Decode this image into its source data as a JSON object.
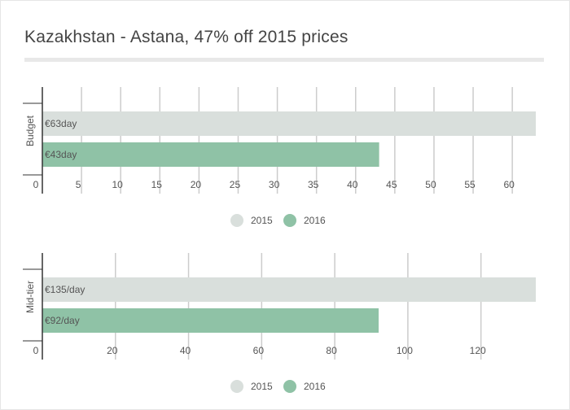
{
  "title": "Kazakhstan - Astana, 47% off 2015 prices",
  "colors": {
    "s2015": "#d9dfdc",
    "s2016": "#8fc2a6",
    "grid": "#cccccc",
    "axis": "#333333",
    "text": "#555555"
  },
  "chart_data": [
    {
      "type": "bar",
      "orientation": "horizontal",
      "category": "Budget",
      "xlim": [
        0,
        63
      ],
      "ticks": [
        0,
        5,
        10,
        15,
        20,
        25,
        30,
        35,
        40,
        45,
        50,
        55,
        60
      ],
      "grid": true,
      "legend_position": "bottom",
      "series": [
        {
          "name": "2015",
          "value": 63,
          "label": "€63day"
        },
        {
          "name": "2016",
          "value": 43,
          "label": "€43day"
        }
      ]
    },
    {
      "type": "bar",
      "orientation": "horizontal",
      "category": "Mid-tier",
      "xlim": [
        0,
        135
      ],
      "ticks": [
        0,
        20,
        40,
        60,
        80,
        100,
        120
      ],
      "grid": true,
      "legend_position": "bottom",
      "series": [
        {
          "name": "2015",
          "value": 135,
          "label": "€135/day"
        },
        {
          "name": "2016",
          "value": 92,
          "label": "€92/day"
        }
      ]
    }
  ]
}
